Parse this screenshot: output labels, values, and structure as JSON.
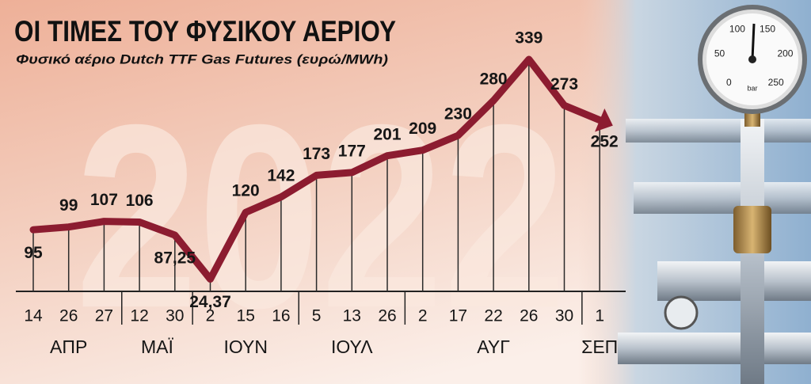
{
  "title": "ΟΙ ΤΙΜΕΣ ΤΟΥ ΦΥΣΙΚΟΥ ΑΕΡΙΟΥ",
  "background_text": "2022",
  "gauge": {
    "labels": [
      "0",
      "50",
      "100",
      "150",
      "200",
      "250"
    ],
    "unit": "bar"
  },
  "chart_data": {
    "type": "line",
    "subtitle": "Φυσικό αέριο Dutch TTF Gas Futures (ευρώ/MWh)",
    "months": [
      {
        "name": "ΑΠΡ",
        "days": [
          "14",
          "26",
          "27"
        ]
      },
      {
        "name": "ΜΑΪ",
        "days": [
          "12",
          "30"
        ]
      },
      {
        "name": "ΙΟΥΝ",
        "days": [
          "2",
          "15",
          "16"
        ]
      },
      {
        "name": "ΙΟΥΛ",
        "days": [
          "5",
          "13",
          "26"
        ]
      },
      {
        "name": "ΑΥΓ",
        "days": [
          "2",
          "17",
          "22",
          "26",
          "30"
        ]
      },
      {
        "name": "ΣΕΠ",
        "days": [
          "1"
        ]
      }
    ],
    "values": [
      95,
      99,
      107,
      106,
      87.25,
      24.37,
      120,
      142,
      173,
      177,
      201,
      209,
      230,
      280,
      339,
      273,
      252
    ],
    "value_labels": [
      "95",
      "99",
      "107",
      "106",
      "87,25",
      "24,37",
      "120",
      "142",
      "173",
      "177",
      "201",
      "209",
      "230",
      "280",
      "339",
      "273",
      "252"
    ],
    "color": "#8c1c30"
  }
}
